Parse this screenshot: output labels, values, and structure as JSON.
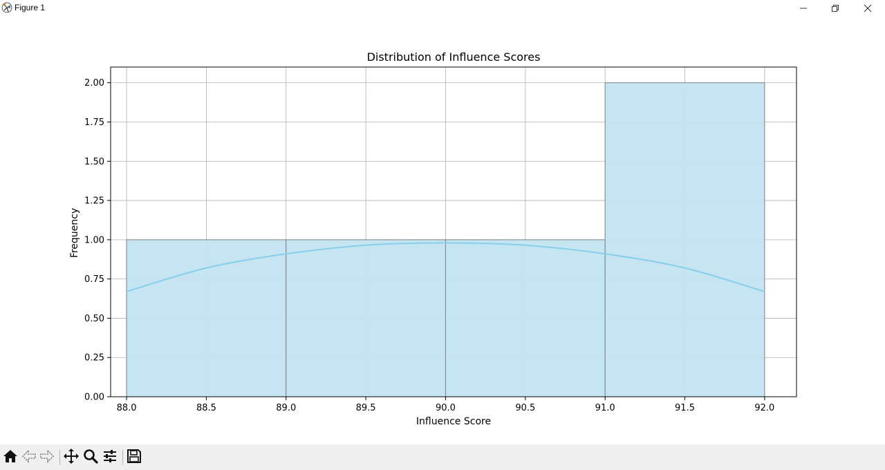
{
  "window": {
    "title": "Figure 1",
    "icons": {
      "app": "matplotlib-icon",
      "minimize": "minimize-icon",
      "restore": "restore-icon",
      "close": "close-icon"
    }
  },
  "toolbar": {
    "buttons": [
      "home-icon",
      "back-icon",
      "forward-icon",
      "pan-icon",
      "zoom-icon",
      "configure-subplots-icon",
      "save-icon"
    ]
  },
  "chart_data": {
    "type": "bar",
    "title": "Distribution of Influence Scores",
    "xlabel": "Influence Score",
    "ylabel": "Frequency",
    "bins": [
      [
        88.0,
        89.0
      ],
      [
        89.0,
        90.0
      ],
      [
        90.0,
        91.0
      ],
      [
        91.0,
        92.0
      ]
    ],
    "values": [
      1,
      1,
      1,
      2
    ],
    "kde": {
      "x": [
        88.0,
        88.5,
        89.0,
        89.5,
        90.0,
        90.5,
        91.0,
        91.5,
        92.0
      ],
      "y": [
        0.67,
        0.82,
        0.91,
        0.965,
        0.98,
        0.965,
        0.91,
        0.82,
        0.67
      ]
    },
    "xlim": [
      87.9,
      92.2
    ],
    "ylim": [
      0,
      2.1
    ],
    "xticks": [
      "88.0",
      "88.5",
      "89.0",
      "89.5",
      "90.0",
      "90.5",
      "91.0",
      "91.5",
      "92.0"
    ],
    "yticks": [
      "0.00",
      "0.25",
      "0.50",
      "0.75",
      "1.00",
      "1.25",
      "1.50",
      "1.75",
      "2.00"
    ],
    "grid": true,
    "colors": {
      "bar_fill": "#c3e4f2",
      "bar_edge": "#808080",
      "kde_line": "#87ceeb",
      "grid": "#b0b0b0"
    }
  }
}
